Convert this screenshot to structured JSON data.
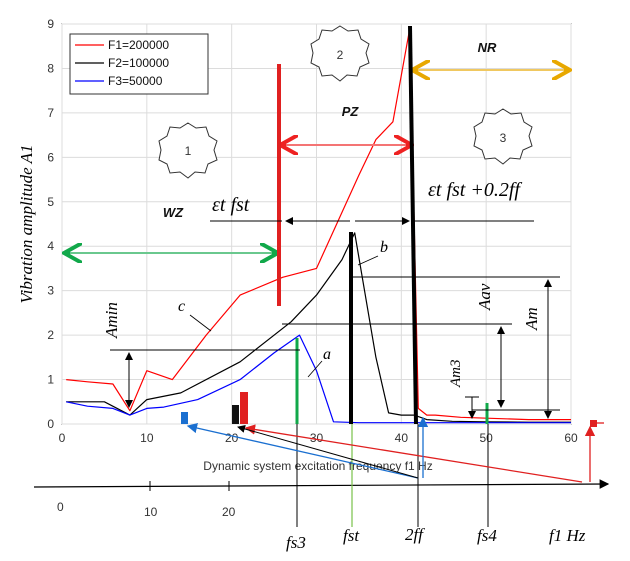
{
  "chart_data": {
    "type": "line",
    "xlabel": "Dynamic system excitation frequency f1 Hz",
    "ylabel": "Vibration amplitude A1",
    "xlim": [
      0,
      60
    ],
    "ylim": [
      0,
      9
    ],
    "xticks": [
      0,
      10,
      20,
      30,
      40,
      50,
      60
    ],
    "yticks": [
      0,
      1,
      2,
      3,
      4,
      5,
      6,
      7,
      8,
      9
    ],
    "legend_position": "top-left",
    "series": [
      {
        "name": "F1=200000",
        "color": "#ff0000",
        "x": [
          0.5,
          3,
          6,
          8,
          10,
          13,
          17,
          21,
          26,
          30,
          35,
          37,
          39,
          41,
          42,
          43,
          44,
          47,
          55,
          60
        ],
        "y": [
          1.0,
          0.95,
          0.9,
          0.3,
          1.2,
          1.0,
          2.0,
          2.9,
          3.3,
          3.5,
          5.6,
          6.4,
          6.8,
          8.9,
          0.35,
          0.2,
          0.2,
          0.15,
          0.1,
          0.1
        ]
      },
      {
        "name": "F2=100000",
        "color": "#000000",
        "x": [
          0.5,
          5,
          8,
          10,
          14,
          21,
          27,
          30,
          33,
          34.5,
          37,
          38.5,
          40,
          41.5,
          43,
          46,
          50,
          55,
          60
        ],
        "y": [
          0.5,
          0.5,
          0.2,
          0.55,
          0.7,
          1.4,
          2.3,
          2.9,
          3.7,
          4.3,
          1.5,
          0.25,
          0.2,
          0.2,
          0.1,
          0.06,
          0.05,
          0.04,
          0.04
        ]
      },
      {
        "name": "F3=50000",
        "color": "#0000ff",
        "x": [
          0.5,
          3,
          6,
          8,
          10,
          12,
          16,
          21,
          25,
          28,
          30,
          32,
          35,
          42,
          50,
          60
        ],
        "y": [
          0.5,
          0.4,
          0.35,
          0.2,
          0.35,
          0.38,
          0.55,
          1.0,
          1.6,
          2.0,
          1.2,
          0.05,
          0.03,
          0.03,
          0.03,
          0.03
        ]
      }
    ],
    "annotations": {
      "zones": [
        {
          "label": "WZ",
          "number": "1"
        },
        {
          "label": "PZ",
          "number": "2"
        },
        {
          "label": "NR",
          "number": "3"
        }
      ],
      "curve_labels": [
        "a",
        "b",
        "c"
      ],
      "markers": [
        {
          "label": "εt fst",
          "x_from": 26,
          "x_to": 34
        },
        {
          "label": "εt fst +0.2ff",
          "x_from": 34,
          "x_to": 41.5
        }
      ],
      "levels": [
        "Amin",
        "Aav",
        "Am",
        "Am3"
      ],
      "lower_axis_ticks": [
        "0",
        "10",
        "20"
      ],
      "lower_axis_labels": [
        "fs3",
        "fst",
        "2ff",
        "fs4",
        "f1 Hz"
      ]
    }
  }
}
